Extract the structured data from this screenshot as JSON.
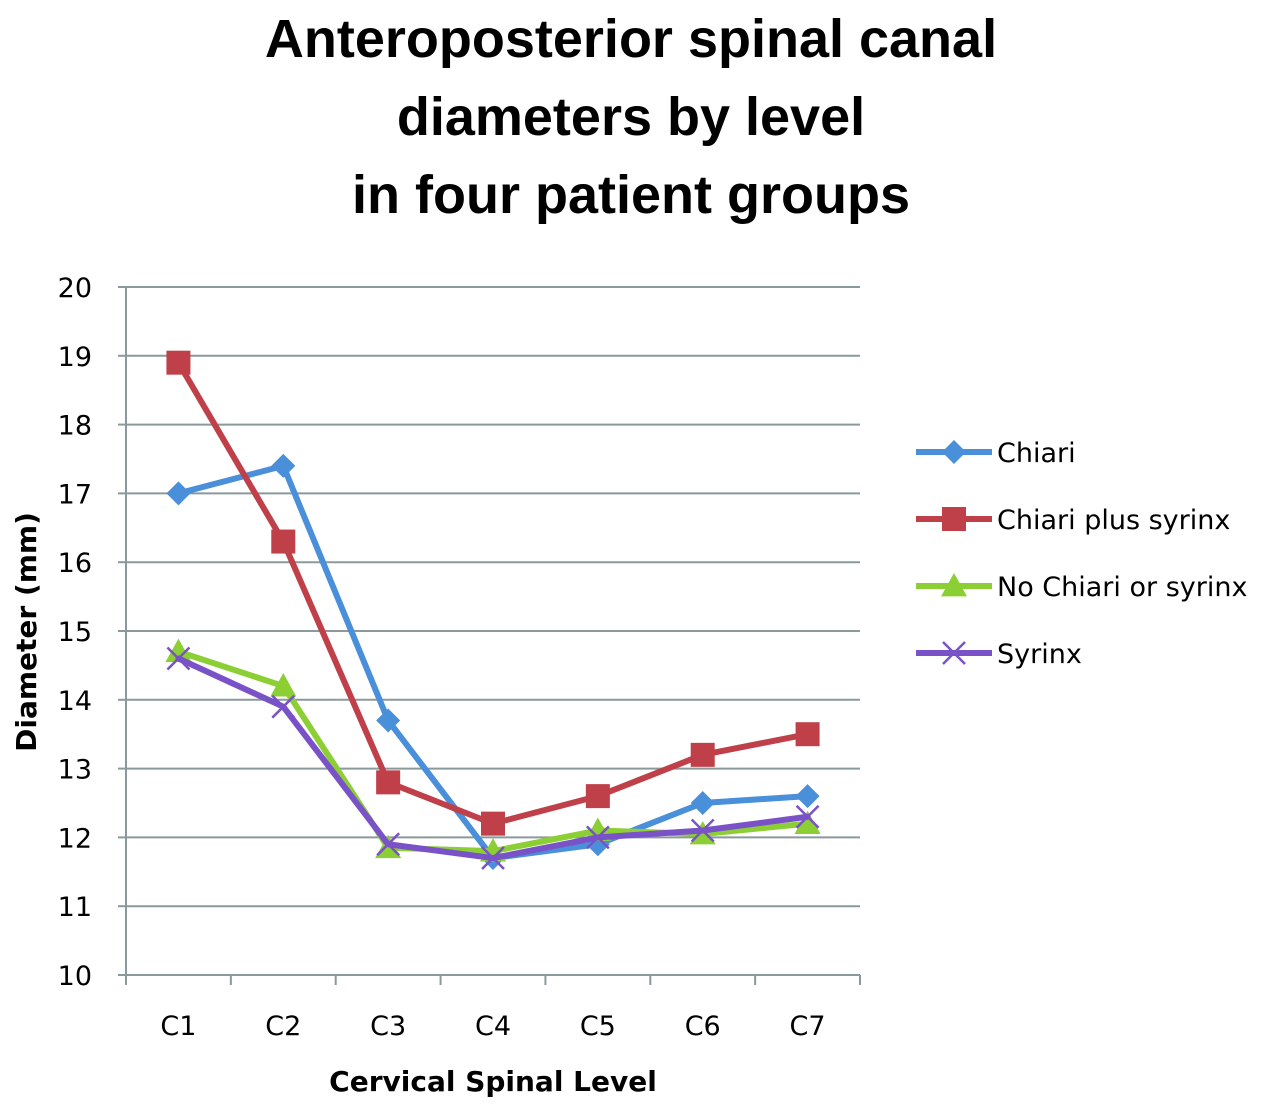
{
  "chart_data": {
    "type": "line",
    "title_lines": [
      "Anteroposterior spinal canal",
      "diameters by level",
      "in four patient groups"
    ],
    "xlabel": "Cervical Spinal Level",
    "ylabel": "Diameter (mm)",
    "categories": [
      "C1",
      "C2",
      "C3",
      "C4",
      "C5",
      "C6",
      "C7"
    ],
    "ylim": [
      10,
      20
    ],
    "yticks": [
      10,
      11,
      12,
      13,
      14,
      15,
      16,
      17,
      18,
      19,
      20
    ],
    "grid": "horizontal",
    "legend_position": "right",
    "series": [
      {
        "name": "Chiari",
        "color": "#4a8fd9",
        "marker": "diamond",
        "values": [
          17.0,
          17.4,
          13.7,
          11.7,
          11.9,
          12.5,
          12.6
        ]
      },
      {
        "name": "Chiari plus syrinx",
        "color": "#c0404a",
        "marker": "square",
        "values": [
          18.9,
          16.3,
          12.8,
          12.2,
          12.6,
          13.2,
          13.5
        ]
      },
      {
        "name": "No Chiari or syrinx",
        "color": "#8ccf35",
        "marker": "triangle",
        "values": [
          14.7,
          14.2,
          11.85,
          11.8,
          12.1,
          12.05,
          12.2
        ]
      },
      {
        "name": "Syrinx",
        "color": "#7a52c7",
        "marker": "x",
        "values": [
          14.6,
          13.9,
          11.9,
          11.7,
          12.0,
          12.1,
          12.3
        ]
      }
    ]
  }
}
